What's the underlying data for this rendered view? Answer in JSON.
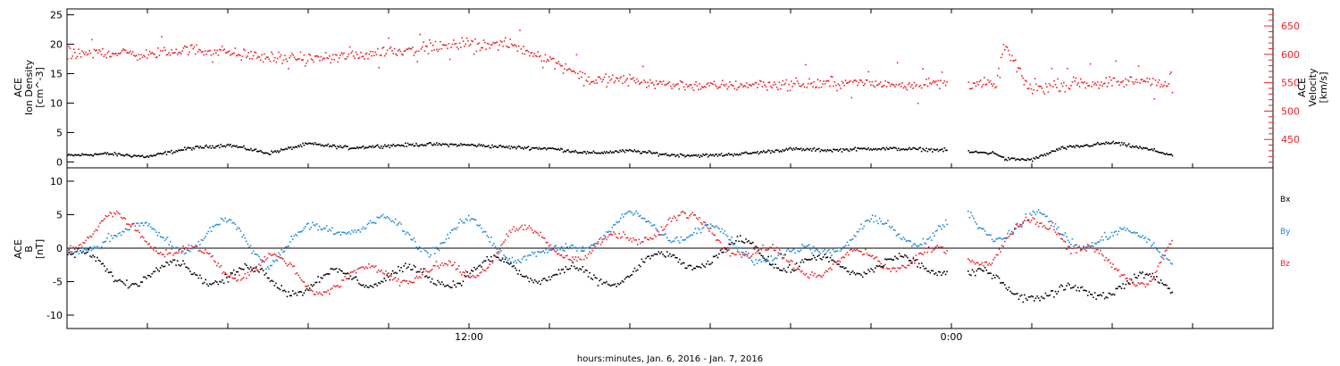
{
  "colors": {
    "black": "#000000",
    "red": "#e8252a",
    "blue": "#1f88d8"
  },
  "x_axis": {
    "label": "hours:minutes, Jan.  6, 2016 - Jan.  7, 2016",
    "tick_labels": [
      "12:00",
      "0:00"
    ]
  },
  "chart_data": [
    {
      "type": "scatter",
      "panel": "top",
      "left_ylabel": [
        "ACE",
        "Ion Density",
        "[cm^-3]"
      ],
      "right_ylabel": [
        "ACE",
        "Velocity",
        "[km/s]"
      ],
      "left_ylim": [
        -1,
        26
      ],
      "left_ticks": [
        0,
        5,
        10,
        15,
        20,
        25
      ],
      "right_ylim": [
        400,
        680
      ],
      "right_ticks": [
        450,
        500,
        550,
        600,
        650
      ],
      "x_unit": "hours since 2016-01-06 02:00",
      "xlim": [
        0,
        30
      ],
      "series": [
        {
          "name": "",
          "axis": "left",
          "color": "#000000",
          "knots": [
            [
              0,
              1.2
            ],
            [
              1,
              1.5
            ],
            [
              2,
              1.0
            ],
            [
              3,
              2.4
            ],
            [
              4,
              3.0
            ],
            [
              5,
              1.6
            ],
            [
              6,
              3.2
            ],
            [
              7,
              2.5
            ],
            [
              8,
              2.9
            ],
            [
              9,
              3.1
            ],
            [
              10,
              3.0
            ],
            [
              11,
              2.6
            ],
            [
              12,
              2.4
            ],
            [
              13,
              1.6
            ],
            [
              14,
              2.0
            ],
            [
              15,
              1.3
            ],
            [
              16,
              1.2
            ],
            [
              17,
              1.6
            ],
            [
              18,
              2.3
            ],
            [
              19,
              2.1
            ],
            [
              20,
              2.4
            ],
            [
              21,
              2.3
            ],
            [
              21.9,
              2.1
            ],
            [
              22,
              null
            ],
            [
              22.4,
              1.8
            ],
            [
              23.1,
              1.6
            ],
            [
              23.3,
              0.6
            ],
            [
              24,
              0.5
            ],
            [
              24.7,
              2.4
            ],
            [
              26,
              3.4
            ],
            [
              27,
              2.1
            ],
            [
              27.5,
              1.2
            ]
          ]
        },
        {
          "name": "",
          "axis": "right",
          "color": "#e8252a",
          "knots": [
            [
              0,
              600
            ],
            [
              1,
              605
            ],
            [
              2,
              600
            ],
            [
              3,
              610
            ],
            [
              4,
              605
            ],
            [
              5,
              595
            ],
            [
              6,
              592
            ],
            [
              7,
              598
            ],
            [
              8,
              607
            ],
            [
              9,
              612
            ],
            [
              10,
              620
            ],
            [
              11,
              618
            ],
            [
              12,
              592
            ],
            [
              13,
              556
            ],
            [
              14,
              556
            ],
            [
              15,
              548
            ],
            [
              16,
              545
            ],
            [
              17,
              548
            ],
            [
              18,
              548
            ],
            [
              19,
              550
            ],
            [
              20,
              550
            ],
            [
              21,
              548
            ],
            [
              21.9,
              552
            ],
            [
              22,
              null
            ],
            [
              22.4,
              550
            ],
            [
              23.1,
              548
            ],
            [
              23.3,
              620
            ],
            [
              23.8,
              552
            ],
            [
              24,
              540
            ],
            [
              25,
              550
            ],
            [
              26,
              552
            ],
            [
              27,
              555
            ],
            [
              27.5,
              540
            ]
          ]
        }
      ]
    },
    {
      "type": "scatter",
      "panel": "bottom",
      "left_ylabel": [
        "ACE",
        "B",
        "[nT]"
      ],
      "ylim": [
        -12,
        12
      ],
      "ticks": [
        -10,
        -5,
        0,
        5,
        10
      ],
      "xlim": [
        0,
        30
      ],
      "legend": [
        "Bx",
        "By",
        "Bz"
      ],
      "legend_placement": "right",
      "series": [
        {
          "name": "Bx",
          "color": "#000000",
          "knots": [
            [
              0,
              -1
            ],
            [
              1,
              -3.5
            ],
            [
              2,
              -4
            ],
            [
              3,
              -3
            ],
            [
              4,
              -4
            ],
            [
              5,
              -4.5
            ],
            [
              6,
              -5.5
            ],
            [
              7,
              -4.5
            ],
            [
              8,
              -3.5
            ],
            [
              9,
              -5
            ],
            [
              10,
              -3
            ],
            [
              11,
              -3
            ],
            [
              12,
              -3.5
            ],
            [
              13,
              -5
            ],
            [
              14,
              -3
            ],
            [
              15,
              -2
            ],
            [
              16,
              -1
            ],
            [
              17,
              0
            ],
            [
              18,
              -2
            ],
            [
              19,
              -3
            ],
            [
              20,
              -2
            ],
            [
              21,
              -3
            ],
            [
              21.9,
              -2
            ],
            [
              22,
              null
            ],
            [
              22.4,
              -4.5
            ],
            [
              23,
              -5
            ],
            [
              24,
              -6
            ],
            [
              24.5,
              -7.5
            ],
            [
              25,
              -7
            ],
            [
              26,
              -5
            ],
            [
              27,
              -5.5
            ],
            [
              27.5,
              -6
            ]
          ]
        },
        {
          "name": "By",
          "color": "#1f88d8",
          "knots": [
            [
              0,
              -2
            ],
            [
              1,
              3
            ],
            [
              2,
              2
            ],
            [
              3,
              1
            ],
            [
              4,
              3
            ],
            [
              5,
              -1
            ],
            [
              6,
              2
            ],
            [
              7,
              4
            ],
            [
              8,
              3
            ],
            [
              9,
              1
            ],
            [
              10,
              3
            ],
            [
              11,
              0
            ],
            [
              12,
              -2
            ],
            [
              13,
              2
            ],
            [
              14,
              4
            ],
            [
              15,
              3
            ],
            [
              16,
              2
            ],
            [
              17,
              0
            ],
            [
              18,
              -2
            ],
            [
              19,
              1
            ],
            [
              20,
              3
            ],
            [
              21,
              2
            ],
            [
              21.9,
              3
            ],
            [
              22,
              null
            ],
            [
              22.4,
              4
            ],
            [
              23,
              3
            ],
            [
              24,
              4
            ],
            [
              25,
              2
            ],
            [
              26,
              1
            ],
            [
              27,
              2
            ],
            [
              27.5,
              -1
            ]
          ]
        },
        {
          "name": "Bz",
          "color": "#e8252a",
          "knots": [
            [
              0,
              1
            ],
            [
              1,
              4
            ],
            [
              2,
              2
            ],
            [
              3,
              -1
            ],
            [
              4,
              -3
            ],
            [
              5,
              -2
            ],
            [
              6,
              -5
            ],
            [
              7,
              -5
            ],
            [
              8,
              -3
            ],
            [
              9,
              -4
            ],
            [
              10,
              -3.5
            ],
            [
              11,
              2
            ],
            [
              12,
              1
            ],
            [
              13,
              -1
            ],
            [
              14,
              2
            ],
            [
              15,
              4
            ],
            [
              16,
              3
            ],
            [
              17,
              -1
            ],
            [
              18,
              -2
            ],
            [
              19,
              -3
            ],
            [
              20,
              -1
            ],
            [
              21,
              -2
            ],
            [
              21.9,
              -1
            ],
            [
              22,
              null
            ],
            [
              22.4,
              0
            ],
            [
              23,
              -2
            ],
            [
              24,
              4
            ],
            [
              24.5,
              5
            ],
            [
              25,
              0
            ],
            [
              26,
              -3
            ],
            [
              27,
              -4
            ],
            [
              27.5,
              0
            ]
          ]
        }
      ]
    }
  ]
}
